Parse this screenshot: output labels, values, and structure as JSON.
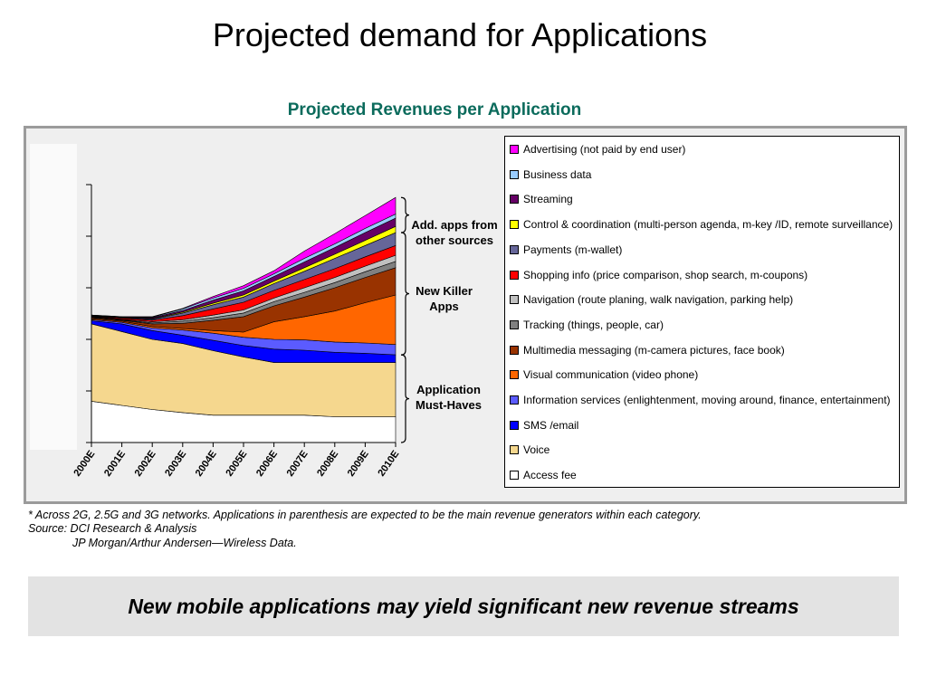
{
  "slide_title": "Projected demand for Applications",
  "chart_data": {
    "type": "area",
    "stacked": true,
    "title": "Projected Revenues per Application",
    "xlabel": "",
    "ylabel": "",
    "categories": [
      "2000E",
      "2001E",
      "2002E",
      "2003E",
      "2004E",
      "2005E",
      "2006E",
      "2007E",
      "2008E",
      "2009E",
      "2010E"
    ],
    "ylim": [
      0,
      5
    ],
    "grid": false,
    "legend_position": "right",
    "series": [
      {
        "name": "Access fee",
        "color": "#ffffff",
        "values": [
          0.8,
          0.72,
          0.64,
          0.58,
          0.53,
          0.53,
          0.53,
          0.53,
          0.5,
          0.5,
          0.5
        ]
      },
      {
        "name": "Voice",
        "color": "#f5d78e",
        "values": [
          1.5,
          1.43,
          1.36,
          1.34,
          1.25,
          1.13,
          1.02,
          1.02,
          1.05,
          1.05,
          1.05
        ]
      },
      {
        "name": "SMS /email",
        "color": "#0000ff",
        "values": [
          0.06,
          0.15,
          0.17,
          0.16,
          0.2,
          0.22,
          0.26,
          0.24,
          0.2,
          0.18,
          0.15
        ]
      },
      {
        "name": "Information services (enlightenment, moving around, finance, entertainment)",
        "color": "#5b5bff",
        "values": [
          0.02,
          0.03,
          0.05,
          0.1,
          0.14,
          0.16,
          0.19,
          0.2,
          0.2,
          0.2,
          0.2
        ]
      },
      {
        "name": "Visual communication (video phone)",
        "color": "#ff6600",
        "values": [
          0.02,
          0.02,
          0.03,
          0.03,
          0.05,
          0.1,
          0.34,
          0.45,
          0.6,
          0.78,
          0.96
        ]
      },
      {
        "name": "Multimedia messaging (m-camera pictures, face book)",
        "color": "#993300",
        "values": [
          0.02,
          0.02,
          0.05,
          0.1,
          0.2,
          0.3,
          0.31,
          0.38,
          0.45,
          0.49,
          0.53
        ]
      },
      {
        "name": "Tracking (things, people, car)",
        "color": "#808080",
        "values": [
          0.01,
          0.01,
          0.02,
          0.04,
          0.05,
          0.07,
          0.08,
          0.09,
          0.1,
          0.11,
          0.12
        ]
      },
      {
        "name": "Navigation (route planing, walk navigation, parking help)",
        "color": "#c0c0c0",
        "values": [
          0.01,
          0.01,
          0.02,
          0.03,
          0.05,
          0.06,
          0.07,
          0.09,
          0.1,
          0.11,
          0.12
        ]
      },
      {
        "name": "Shopping info (price comparison, shop search, m-coupons)",
        "color": "#ff0000",
        "values": [
          0.01,
          0.02,
          0.03,
          0.08,
          0.12,
          0.15,
          0.15,
          0.16,
          0.17,
          0.18,
          0.19
        ]
      },
      {
        "name": "Payments (m-wallet)",
        "color": "#666699",
        "values": [
          0.01,
          0.01,
          0.02,
          0.05,
          0.08,
          0.1,
          0.13,
          0.16,
          0.2,
          0.22,
          0.25
        ]
      },
      {
        "name": "Control & coordination (multi-person agenda, m-key /ID, remote surveillance)",
        "color": "#ffff00",
        "values": [
          0.0,
          0.0,
          0.01,
          0.02,
          0.03,
          0.04,
          0.05,
          0.07,
          0.08,
          0.1,
          0.12
        ]
      },
      {
        "name": "Streaming",
        "color": "#660066",
        "values": [
          0.01,
          0.01,
          0.02,
          0.03,
          0.06,
          0.08,
          0.09,
          0.11,
          0.13,
          0.15,
          0.16
        ]
      },
      {
        "name": "Business data",
        "color": "#99ccff",
        "values": [
          0.0,
          0.01,
          0.01,
          0.03,
          0.04,
          0.05,
          0.05,
          0.07,
          0.07,
          0.08,
          0.08
        ]
      },
      {
        "name": "Advertising (not paid by end user)",
        "color": "#ff00ff",
        "values": [
          0.0,
          0.0,
          0.01,
          0.01,
          0.03,
          0.05,
          0.06,
          0.14,
          0.2,
          0.25,
          0.32
        ]
      }
    ],
    "annotations": [
      {
        "text": "Add. apps from\nother sources",
        "series_from": 10,
        "series_to": 13
      },
      {
        "text": "New Killer\nApps",
        "series_from": 3,
        "series_to": 9
      },
      {
        "text": "Application\nMust-Haves",
        "series_from": 0,
        "series_to": 2
      }
    ]
  },
  "footnote_lines": [
    "* Across 2G, 2.5G and 3G networks. Applications in parenthesis are expected to be the main revenue generators within each category.",
    "Source: DCI  Research & Analysis",
    "JP Morgan/Arthur Andersen—Wireless Data."
  ],
  "banner_text": "New mobile applications may yield significant new revenue streams"
}
